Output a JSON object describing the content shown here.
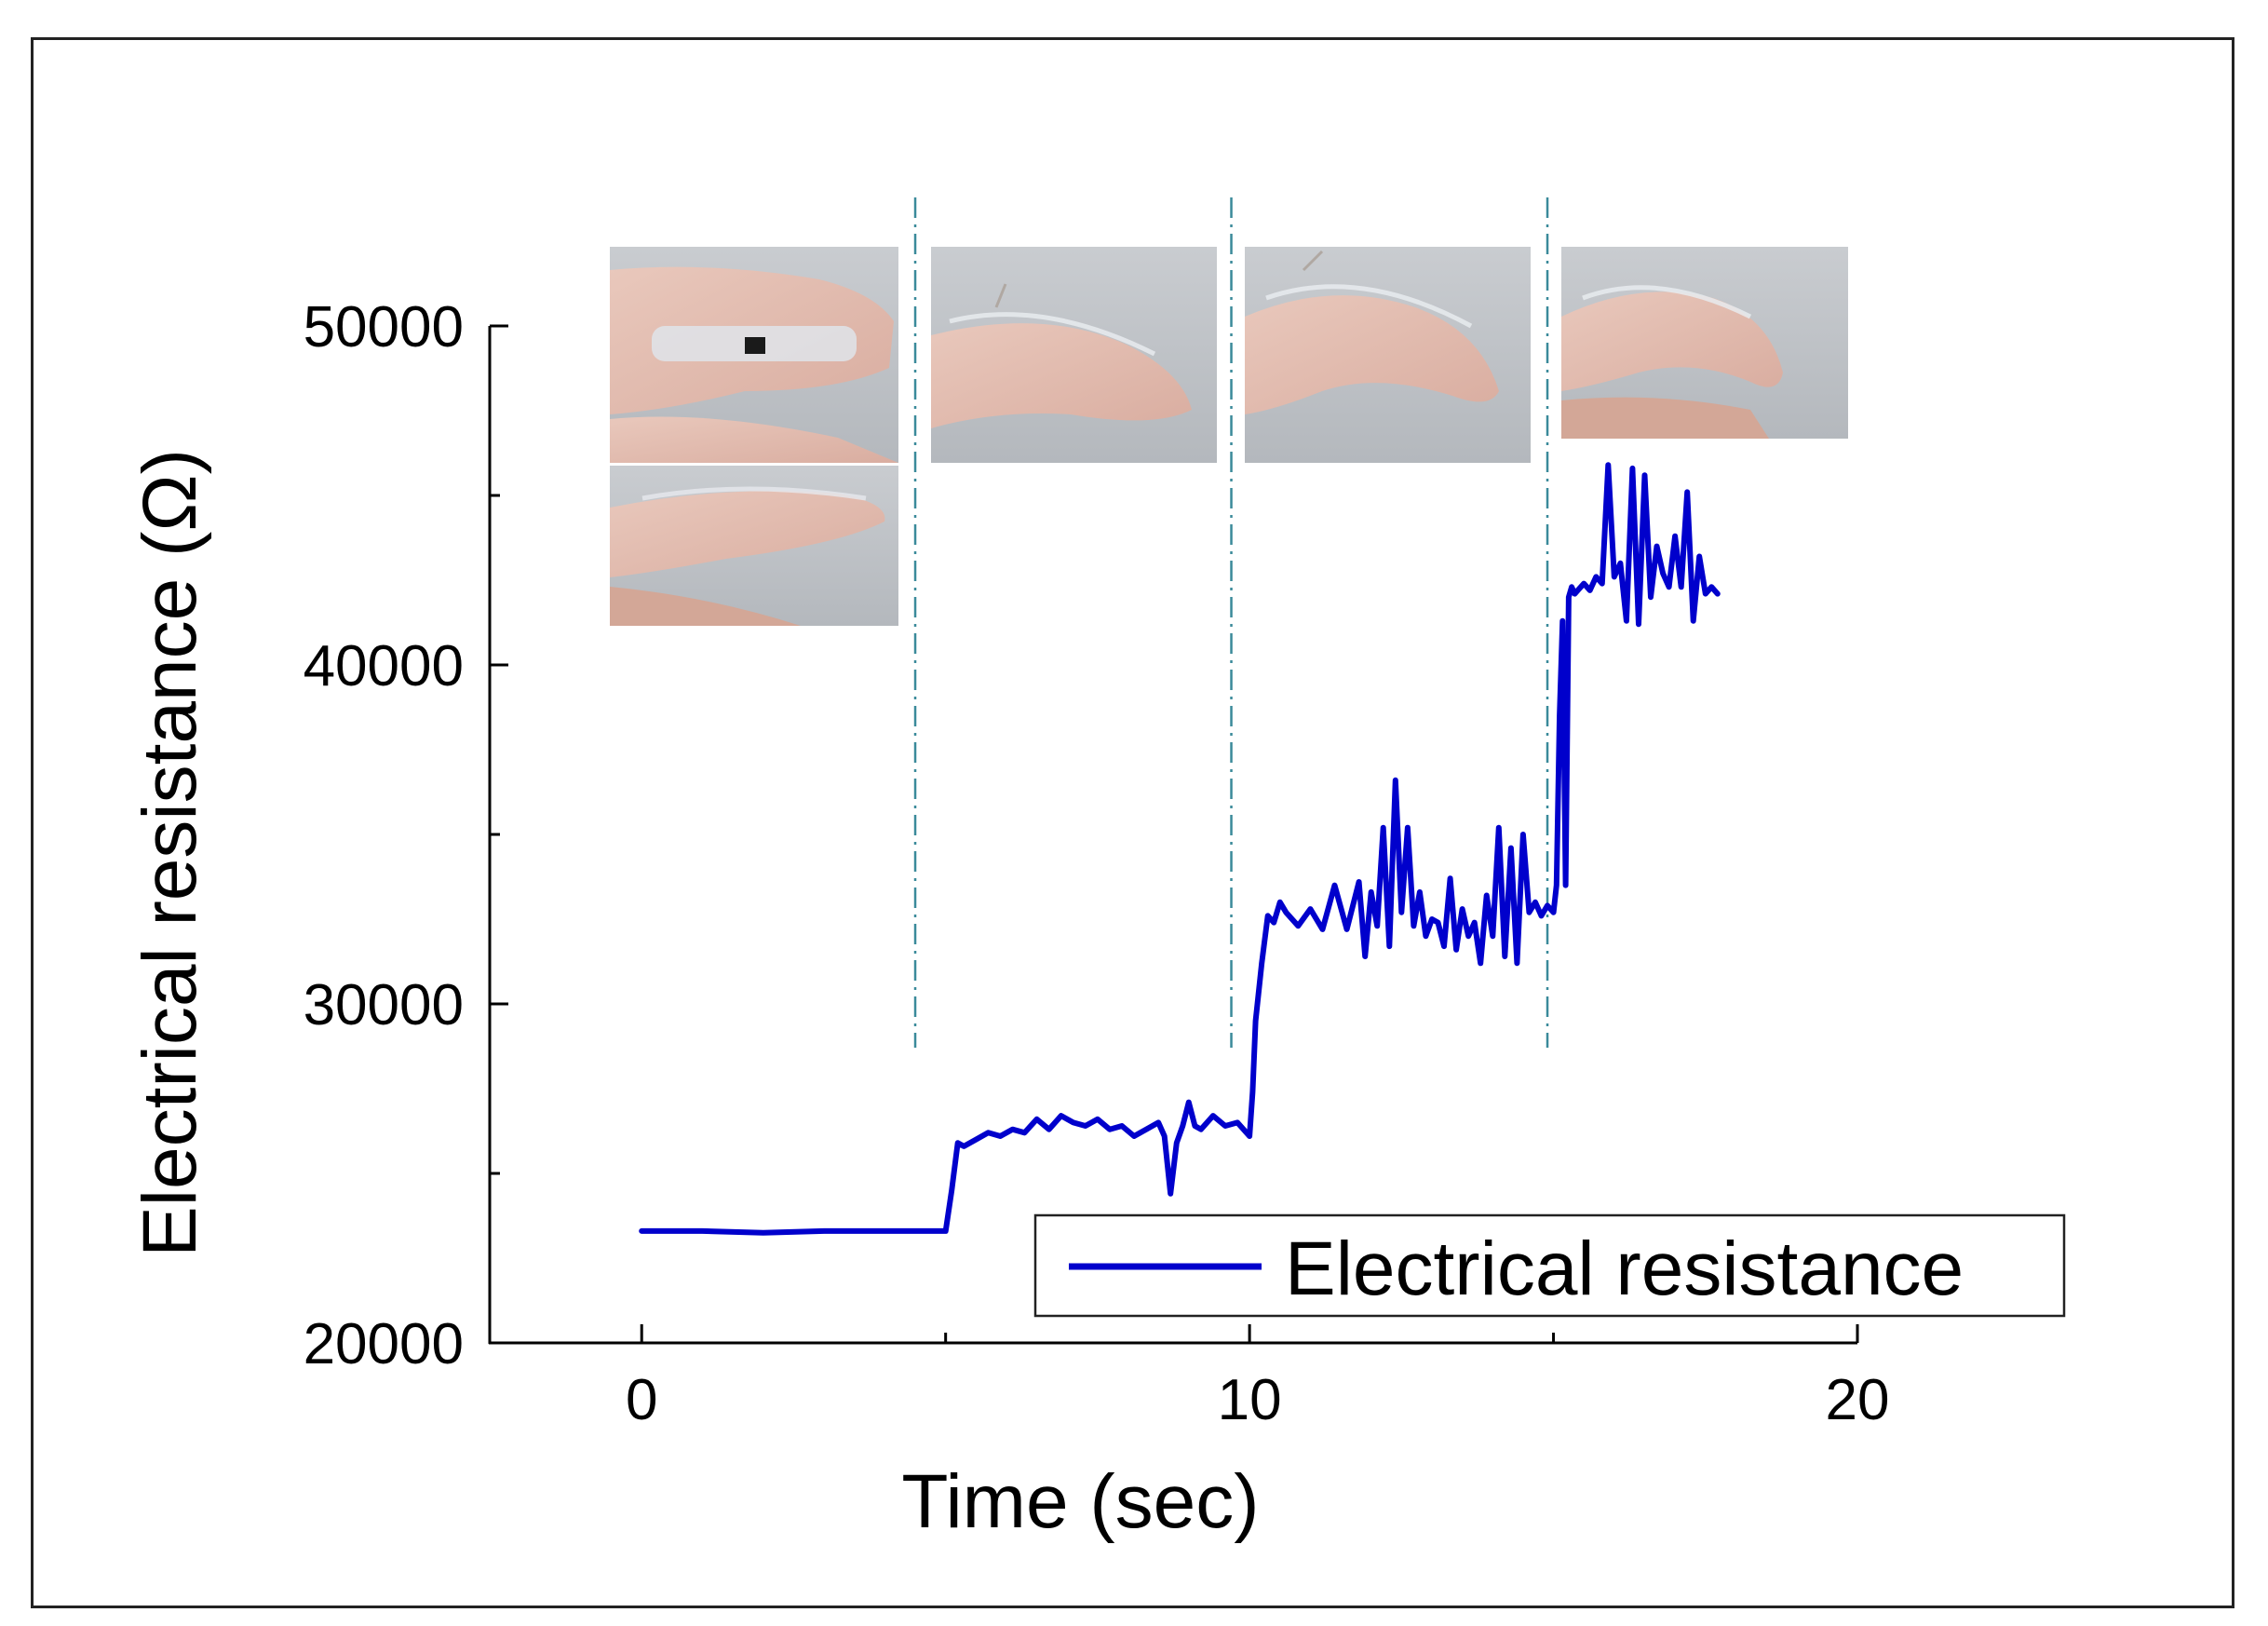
{
  "chart_data": {
    "type": "line",
    "title": "",
    "xlabel": "Time (sec)",
    "ylabel": "Electrical resistance (Ω)",
    "xlim": [
      -2.5,
      20
    ],
    "ylim": [
      20000,
      50000
    ],
    "xticks": [
      0,
      10,
      20
    ],
    "yticks": [
      20000,
      30000,
      40000,
      50000
    ],
    "xtick_labels": [
      "0",
      "10",
      "20"
    ],
    "ytick_labels": [
      "20000",
      "30000",
      "40000",
      "50000"
    ],
    "grid": false,
    "legend": {
      "position": "bottom-right",
      "entries": [
        "Electrical resistance"
      ]
    },
    "phase_boundaries_x": [
      4.5,
      9.7,
      14.9
    ],
    "inset_photos": [
      {
        "x_start": -0.5,
        "x_end": 4.2,
        "description": "finger straight (top and side view)"
      },
      {
        "x_start": 4.8,
        "x_end": 9.5,
        "description": "finger slightly bent"
      },
      {
        "x_start": 9.9,
        "x_end": 14.6,
        "description": "finger bent more"
      },
      {
        "x_start": 15.1,
        "x_end": 19.8,
        "description": "finger bent most"
      }
    ],
    "series": [
      {
        "name": "Electrical resistance",
        "color": "#0000cc",
        "x": [
          0.0,
          1.0,
          2.0,
          3.0,
          4.0,
          5.0,
          5.1,
          5.2,
          5.3,
          5.5,
          5.7,
          5.9,
          6.1,
          6.3,
          6.5,
          6.7,
          6.9,
          7.1,
          7.3,
          7.5,
          7.7,
          7.9,
          8.1,
          8.3,
          8.5,
          8.6,
          8.7,
          8.8,
          8.9,
          9.0,
          9.1,
          9.2,
          9.4,
          9.6,
          9.8,
          10.0,
          10.05,
          10.1,
          10.2,
          10.3,
          10.4,
          10.5,
          10.6,
          10.8,
          11.0,
          11.2,
          11.4,
          11.6,
          11.8,
          11.9,
          12.0,
          12.1,
          12.2,
          12.3,
          12.4,
          12.5,
          12.6,
          12.7,
          12.8,
          12.9,
          13.0,
          13.1,
          13.2,
          13.3,
          13.4,
          13.5,
          13.6,
          13.7,
          13.8,
          13.9,
          14.0,
          14.1,
          14.2,
          14.3,
          14.4,
          14.5,
          14.6,
          14.7,
          14.8,
          14.9,
          15.0,
          15.05,
          15.1,
          15.15,
          15.2,
          15.25,
          15.3,
          15.35,
          15.4,
          15.5,
          15.6,
          15.7,
          15.8,
          15.9,
          16.0,
          16.1,
          16.2,
          16.3,
          16.4,
          16.5,
          16.6,
          16.7,
          16.8,
          16.9,
          17.0,
          17.1,
          17.2,
          17.3,
          17.4,
          17.5,
          17.6,
          17.7
        ],
        "values": [
          23300,
          23300,
          23250,
          23300,
          23300,
          23300,
          24500,
          25900,
          25800,
          26000,
          26200,
          26100,
          26300,
          26200,
          26600,
          26300,
          26700,
          26500,
          26400,
          26600,
          26300,
          26400,
          26100,
          26300,
          26500,
          26100,
          24400,
          25900,
          26400,
          27100,
          26400,
          26300,
          26700,
          26400,
          26500,
          26100,
          27400,
          29500,
          31200,
          32600,
          32400,
          33000,
          32700,
          32300,
          32800,
          32200,
          33500,
          32200,
          33600,
          31400,
          33300,
          32300,
          35200,
          31700,
          36600,
          32700,
          35200,
          32300,
          33300,
          32000,
          32500,
          32400,
          31700,
          33700,
          31600,
          32800,
          32000,
          32400,
          31200,
          33200,
          32000,
          35200,
          31400,
          34600,
          31200,
          35000,
          32700,
          33000,
          32600,
          32900,
          32700,
          33500,
          38500,
          41300,
          33500,
          42000,
          42300,
          42100,
          42200,
          42400,
          42200,
          42600,
          42400,
          45900,
          42600,
          43000,
          41300,
          45800,
          41200,
          45600,
          42000,
          43500,
          42700,
          42300,
          43800,
          42300,
          45100,
          41300,
          43200,
          42100,
          42300,
          42100
        ]
      }
    ]
  }
}
